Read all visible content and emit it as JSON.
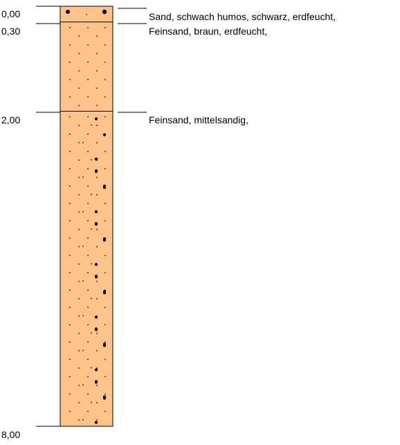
{
  "colors": {
    "soil": "#fdc389",
    "line": "#000000",
    "background": "#ffffff"
  },
  "column": {
    "top_depth": 0.0,
    "bottom_depth": 8.0,
    "depth_unit": "m"
  },
  "depth_labels": [
    {
      "depth": 0.0,
      "text": "0,00"
    },
    {
      "depth": 0.3,
      "text": "0,30"
    },
    {
      "depth": 2.0,
      "text": "2,00"
    },
    {
      "depth": 8.0,
      "text": "8,00"
    }
  ],
  "layers": [
    {
      "top": 0.0,
      "bottom": 0.3,
      "pattern": "coarse",
      "description": "Sand, schwach humos, schwarz, erdfeucht,"
    },
    {
      "top": 0.3,
      "bottom": 2.0,
      "pattern": "fine",
      "description": "Feinsand, braun, erdfeucht,"
    },
    {
      "top": 2.0,
      "bottom": 8.0,
      "pattern": "fine-medium",
      "description": "Feinsand, mittelsandig,"
    }
  ]
}
